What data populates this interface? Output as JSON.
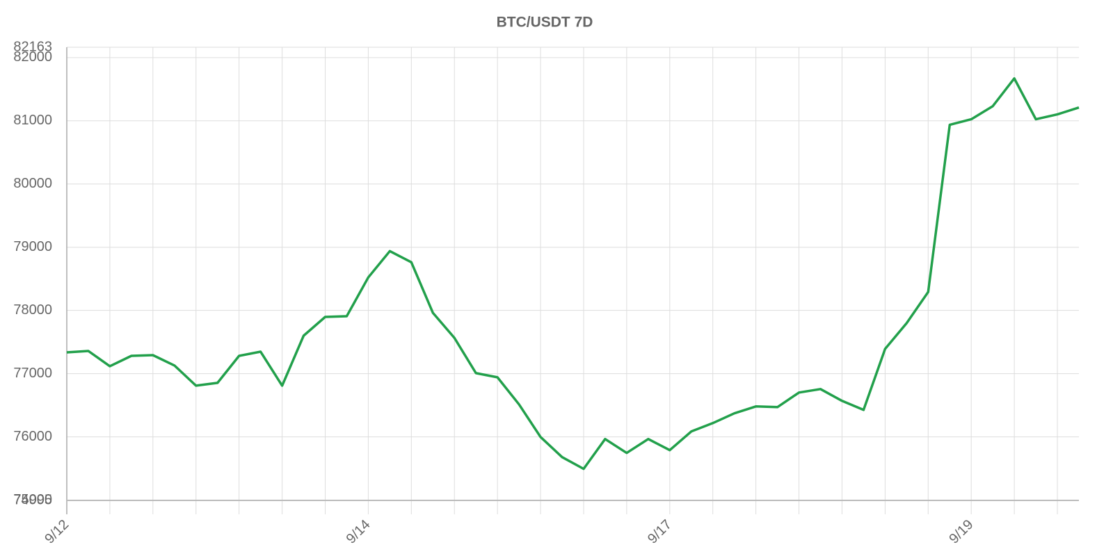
{
  "chart_data": {
    "type": "line",
    "title": "BTC/USDT 7D",
    "categories": [
      "9/12",
      null,
      null,
      null,
      null,
      null,
      null,
      null,
      null,
      null,
      null,
      null,
      null,
      null,
      "9/14",
      null,
      null,
      null,
      null,
      null,
      null,
      null,
      null,
      null,
      null,
      null,
      null,
      null,
      "9/17",
      null,
      null,
      null,
      null,
      null,
      null,
      null,
      null,
      null,
      null,
      null,
      null,
      null,
      "9/19",
      null,
      null,
      null,
      null,
      null
    ],
    "series": [
      {
        "name": "BTC/USDT",
        "color": "#22a04b",
        "values": [
          77337,
          77359,
          77118,
          77282,
          77293,
          77129,
          76810,
          76854,
          77282,
          77348,
          76810,
          77600,
          77897,
          77908,
          78522,
          78939,
          78763,
          77962,
          77567,
          77008,
          76942,
          76514,
          75998,
          75680,
          75494,
          75966,
          75746,
          75966,
          75790,
          76086,
          76218,
          76372,
          76481,
          76470,
          76701,
          76756,
          76569,
          76426,
          77392,
          77798,
          78292,
          80936,
          81024,
          81232,
          81671,
          81024,
          81101,
          81210
        ]
      }
    ],
    "ylim": [
      74995,
      82163
    ],
    "yticks": [
      74995,
      75000,
      76000,
      77000,
      78000,
      79000,
      80000,
      81000,
      82000,
      82163
    ],
    "grid": true
  }
}
